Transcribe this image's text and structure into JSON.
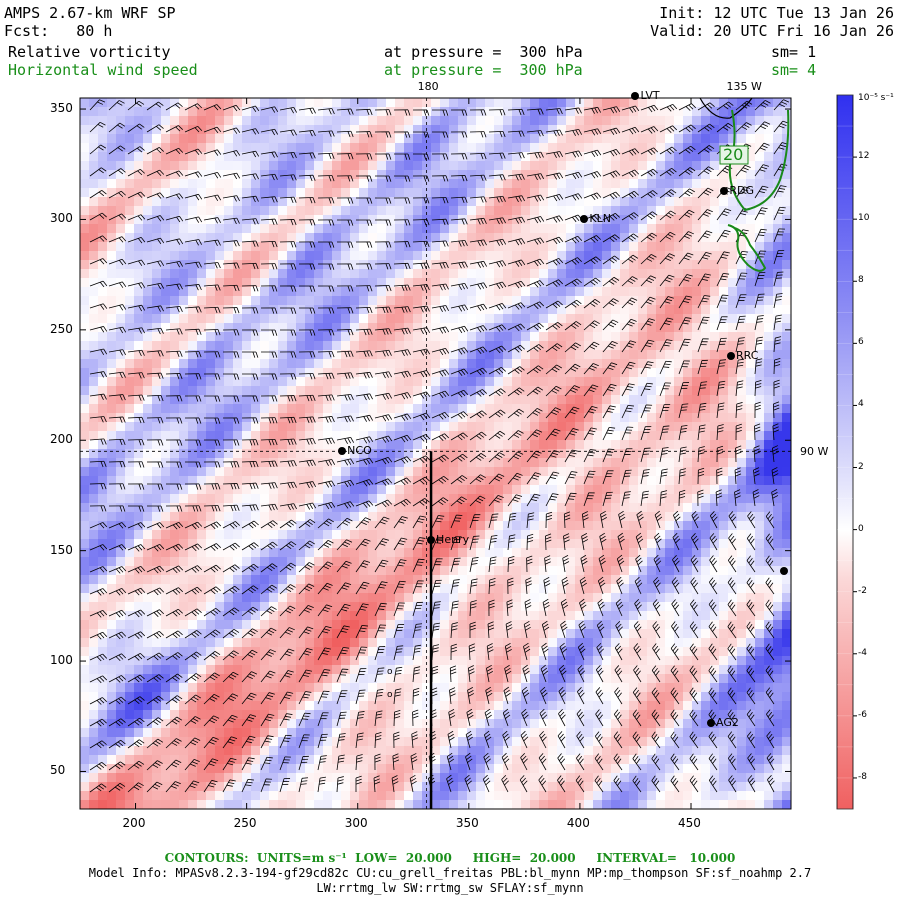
{
  "header": {
    "title": "AMPS 2.67-km WRF SP",
    "fcst": "Fcst:   80 h",
    "init": "Init: 12 UTC Tue 13 Jan 26",
    "valid": "Valid: 20 UTC Fri 16 Jan 26",
    "field1": "Relative vorticity",
    "field1_level": "at pressure =  300 hPa",
    "field1_sm": "sm= 1",
    "field2": "Horizontal wind speed",
    "field2_level": "at pressure =  300 hPa",
    "field2_sm": "sm= 4"
  },
  "chart_data": {
    "type": "heatmap",
    "title": "Relative vorticity at 300 hPa with wind barbs",
    "xlim": [
      175,
      495
    ],
    "ylim": [
      33,
      355
    ],
    "xticks": [
      200,
      250,
      300,
      350,
      400,
      450
    ],
    "yticks": [
      50,
      100,
      150,
      200,
      250,
      300,
      350
    ],
    "colorbar": {
      "unit": "10⁻⁵ s⁻¹",
      "range": [
        -9,
        14
      ],
      "ticks": [
        12,
        10,
        8,
        6,
        4,
        2,
        0,
        -2,
        -4,
        -6,
        -8
      ],
      "colors": {
        "negative": "#f06a6a",
        "zero": "#ffffff",
        "positive": "#3a3af0"
      }
    },
    "meridian_labels": [
      {
        "text": "180",
        "x": 331
      },
      {
        "text": "135 W",
        "x": 470
      },
      {
        "text": "90 W",
        "y": 195
      }
    ],
    "contour_label": "20",
    "stations": [
      {
        "name": "LVT",
        "x": 425,
        "y": 356
      },
      {
        "name": "RDG",
        "x": 465,
        "y": 313
      },
      {
        "name": "KLN",
        "x": 402,
        "y": 300
      },
      {
        "name": "RRC",
        "x": 468,
        "y": 238
      },
      {
        "name": "NCO",
        "x": 293,
        "y": 195
      },
      {
        "name": "Henry",
        "x": 333,
        "y": 155
      },
      {
        "name": "AG2",
        "x": 459,
        "y": 72
      },
      {
        "name": "",
        "x": 492,
        "y": 141
      }
    ],
    "section_line": {
      "x": 333,
      "y_from": 33,
      "y_to": 195
    }
  },
  "footer": {
    "contours": "CONTOURS:  UNITS=m s⁻¹  LOW=  20.000     HIGH=  20.000     INTERVAL=   10.000",
    "model_info": "Model Info: MPASv8.2.3-194-gf29cd82c CU:cu_grell_freitas PBL:bl_mynn MP:mp_thompson SF:sf_noahmp 2.7",
    "model_info2": "LW:rrtmg_lw SW:rrtmg_sw SFLAY:sf_mynn"
  }
}
